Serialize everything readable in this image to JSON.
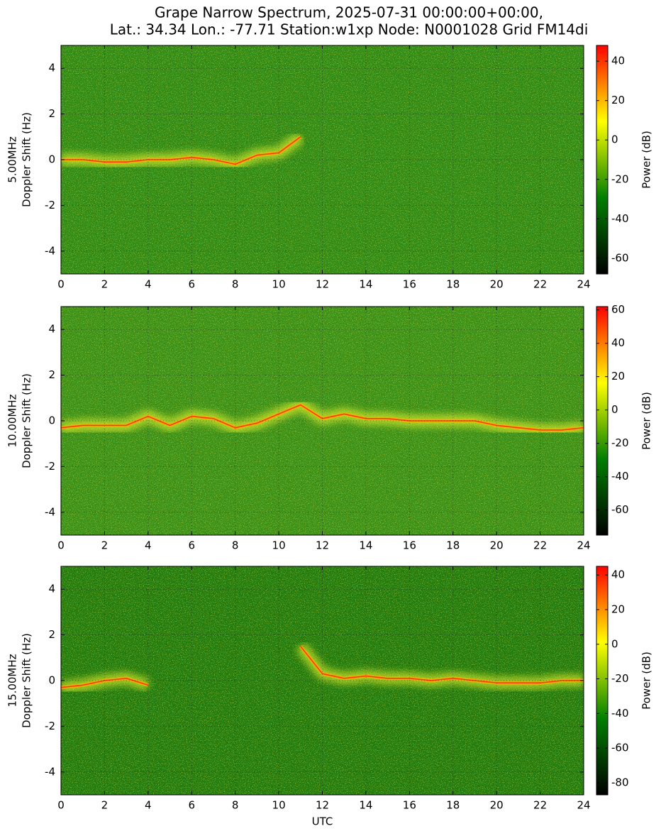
{
  "title": [
    "Grape Narrow Spectrum, 2025-07-31 00:00:00+00:00,",
    "Lat.: 34.34 Lon.: -77.71 Station:w1xp Node: N0001028 Grid FM14di"
  ],
  "chart_data": [
    {
      "type": "heatmap",
      "ylabel": [
        "5.00MHz",
        "Doppler Shift (Hz)"
      ],
      "color": "#2f8a16",
      "grid": true,
      "xlim": [
        0,
        24
      ],
      "xticks": [
        0,
        2,
        4,
        6,
        8,
        10,
        12,
        14,
        16,
        18,
        20,
        22,
        24
      ],
      "ylim": [
        -5,
        5
      ],
      "yticks": [
        -4,
        -2,
        0,
        2,
        4
      ],
      "x": [
        0,
        1,
        2,
        3,
        4,
        5,
        6,
        7,
        8,
        9,
        10,
        11
      ],
      "values": [
        0,
        0,
        -0.1,
        -0.1,
        0,
        0,
        0.1,
        0,
        -0.2,
        0.2,
        0.3,
        1.0
      ],
      "trace_color": "#ff3a00",
      "colorbar": {
        "label": "Power (dB)",
        "clim": [
          -68,
          48
        ],
        "ticks": [
          -60,
          -40,
          -20,
          0,
          20,
          40
        ],
        "colors": [
          "#000000",
          "#007f00",
          "#ffff00",
          "#ff0000"
        ]
      }
    },
    {
      "type": "heatmap",
      "ylabel": [
        "10.00MHz",
        "Doppler Shift (Hz)"
      ],
      "color": "#3a9018",
      "grid": true,
      "xlim": [
        0,
        24
      ],
      "xticks": [
        0,
        2,
        4,
        6,
        8,
        10,
        12,
        14,
        16,
        18,
        20,
        22,
        24
      ],
      "ylim": [
        -5,
        5
      ],
      "yticks": [
        -4,
        -2,
        0,
        2,
        4
      ],
      "x": [
        0,
        1,
        2,
        3,
        4,
        5,
        6,
        7,
        8,
        9,
        10,
        11,
        12,
        13,
        14,
        15,
        16,
        17,
        18,
        19,
        20,
        21,
        22,
        23,
        24
      ],
      "values": [
        -0.3,
        -0.2,
        -0.2,
        -0.2,
        0.2,
        -0.2,
        0.2,
        0.1,
        -0.3,
        -0.1,
        0.3,
        0.7,
        0.1,
        0.3,
        0.1,
        0.1,
        0,
        0,
        0,
        0,
        -0.2,
        -0.3,
        -0.4,
        -0.4,
        -0.3
      ],
      "trace_color": "#ff3a00",
      "colorbar": {
        "label": "Power (dB)",
        "clim": [
          -75,
          62
        ],
        "ticks": [
          -60,
          -40,
          -20,
          0,
          20,
          40,
          60
        ],
        "colors": [
          "#000000",
          "#007f00",
          "#ffff00",
          "#ff0000"
        ]
      }
    },
    {
      "type": "heatmap",
      "ylabel": [
        "15.00MHz",
        "Doppler Shift (Hz)"
      ],
      "xlabel": "UTC",
      "color": "#217a0e",
      "grid": true,
      "xlim": [
        0,
        24
      ],
      "xticks": [
        0,
        2,
        4,
        6,
        8,
        10,
        12,
        14,
        16,
        18,
        20,
        22,
        24
      ],
      "ylim": [
        -5,
        5
      ],
      "yticks": [
        -4,
        -2,
        0,
        2,
        4
      ],
      "x": [
        0,
        1,
        2,
        3,
        4,
        5,
        6,
        7,
        8,
        9,
        10,
        11,
        12,
        13,
        14,
        15,
        16,
        17,
        18,
        19,
        20,
        21,
        22,
        23,
        24
      ],
      "values": [
        -0.3,
        -0.2,
        0,
        0.1,
        -0.2,
        null,
        null,
        null,
        null,
        null,
        null,
        1.5,
        0.3,
        0.1,
        0.2,
        0.1,
        0.1,
        0,
        0.1,
        0,
        -0.1,
        -0.1,
        -0.1,
        0,
        0
      ],
      "trace_color": "#ff3a00",
      "colorbar": {
        "label": "Power (dB)",
        "clim": [
          -87,
          45
        ],
        "ticks": [
          -80,
          -60,
          -40,
          -20,
          0,
          20,
          40
        ],
        "colors": [
          "#000000",
          "#007f00",
          "#ffff00",
          "#ff0000"
        ]
      }
    }
  ]
}
